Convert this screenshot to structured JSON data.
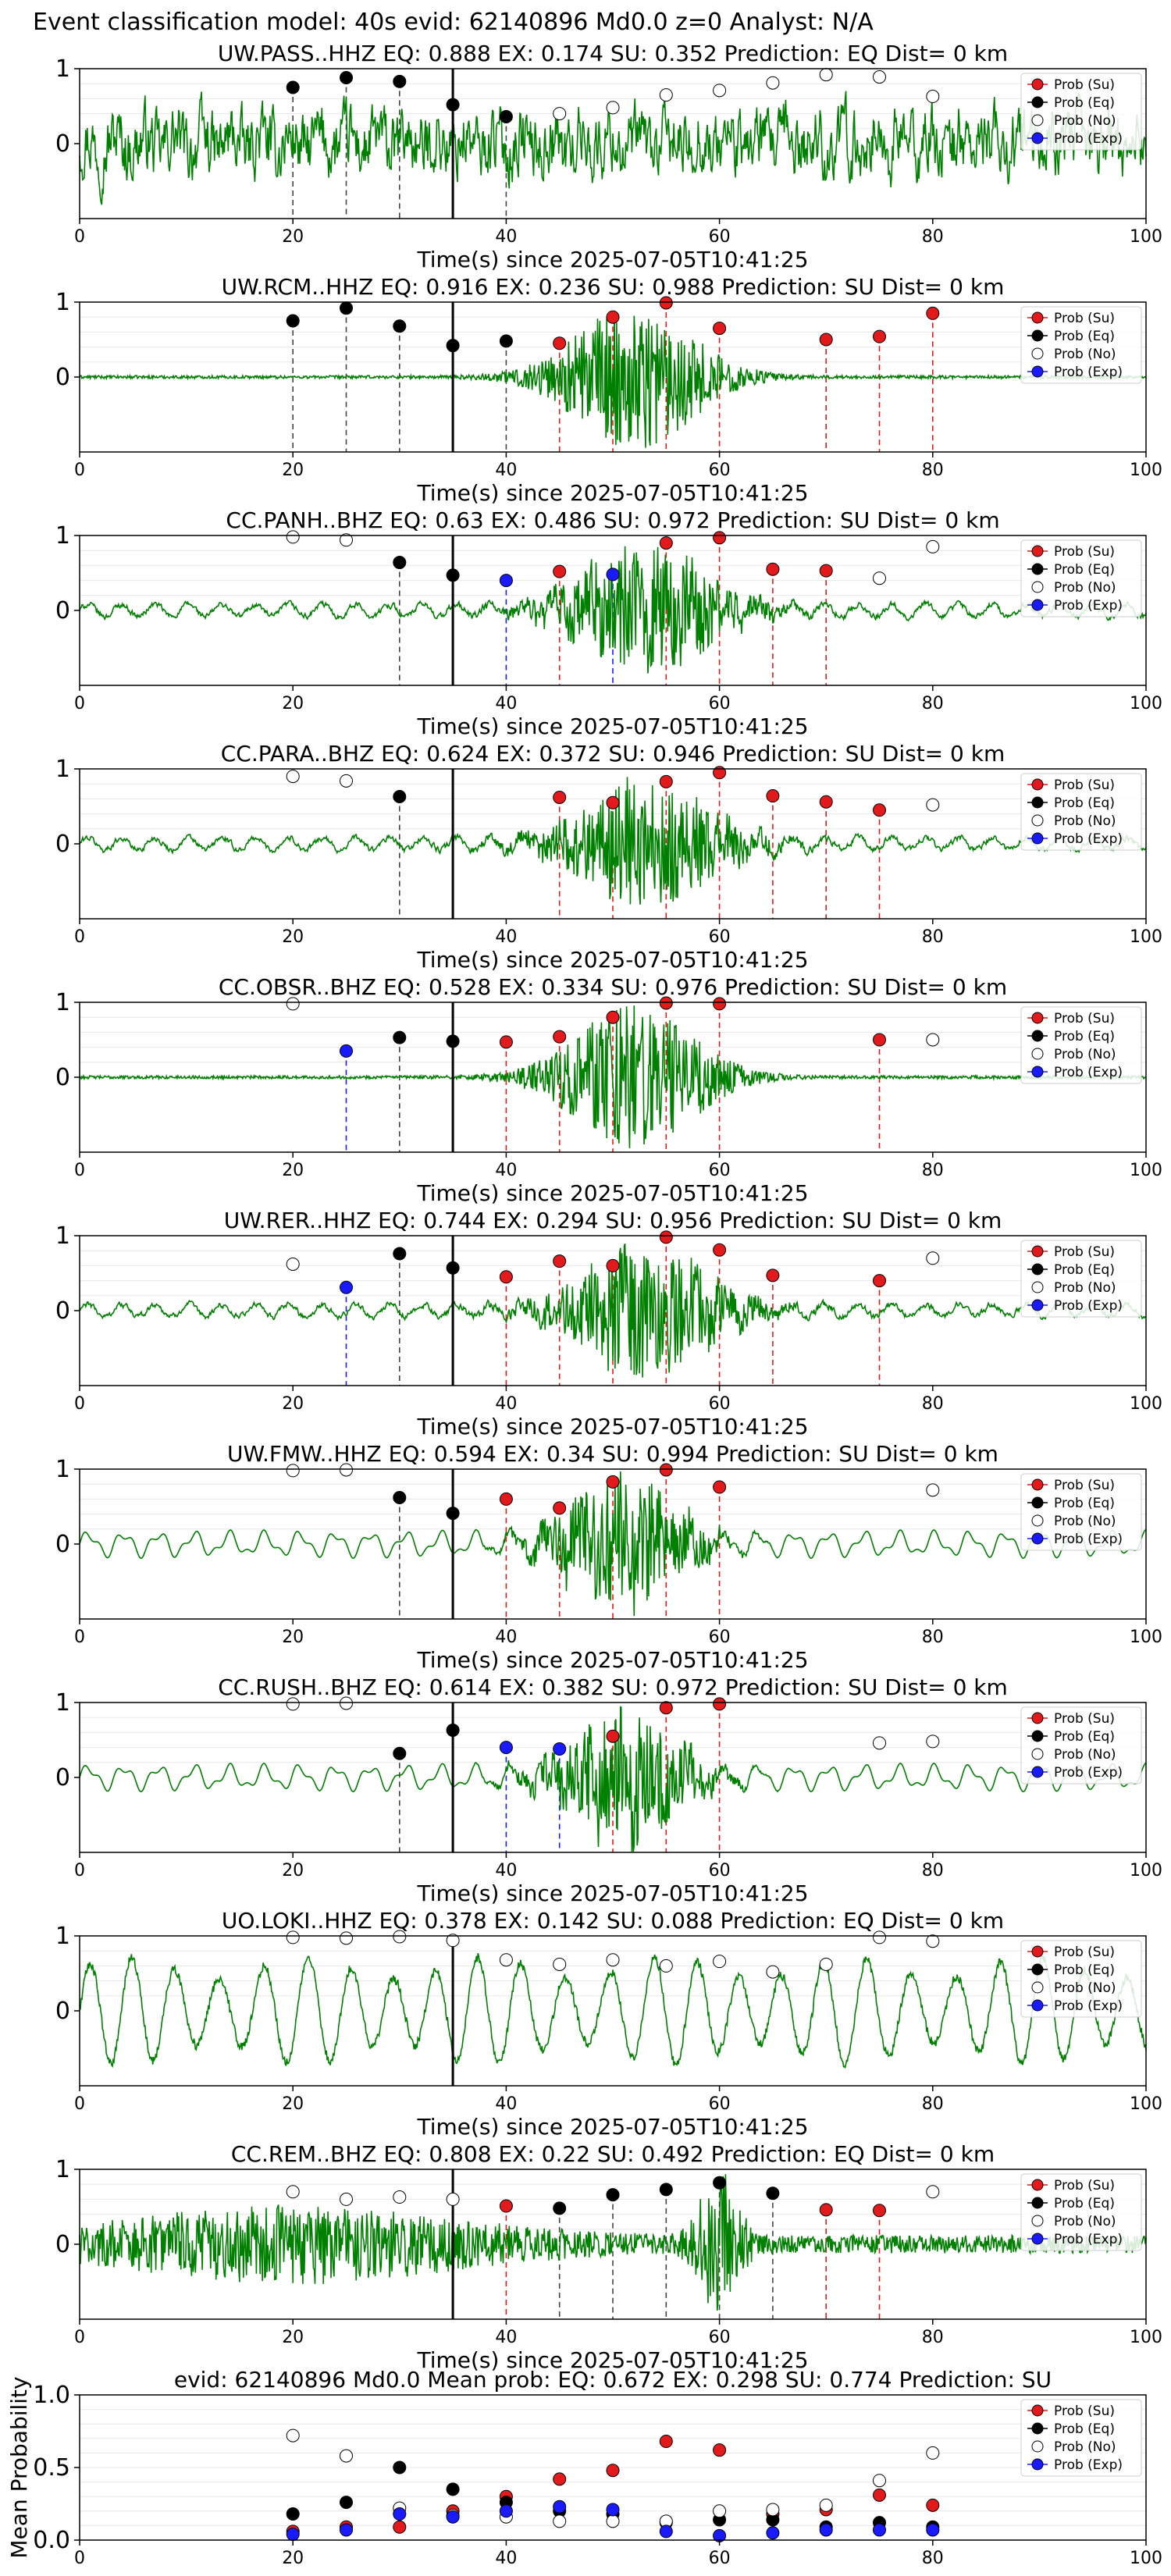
{
  "figure": {
    "suptitle": "Event classification model: 40s evid: 62140896 Md0.0 z=0 Analyst: N/A"
  },
  "legend_labels": [
    "Prob (Su)",
    "Prob (Eq)",
    "Prob (No)",
    "Prob (Exp)"
  ],
  "colors": {
    "waveform": "#008000",
    "su": "#e31a1c",
    "eq": "#000000",
    "no": "#ffffff",
    "exp": "#1a1aff"
  },
  "chart_data": [
    {
      "type": "line",
      "title": "UW.PASS..HHZ   EQ: 0.888  EX: 0.174  SU: 0.352   Prediction: EQ    Dist= 0 km",
      "xlabel": "Time(s) since 2025-07-05T10:41:25",
      "xlim": [
        0,
        100
      ],
      "ylim": [
        -1,
        1
      ],
      "xticks": [
        0,
        20,
        40,
        60,
        80,
        100
      ],
      "yticks": [
        0,
        1
      ],
      "waveform_style": "noise",
      "arrival_time": 35,
      "probabilities": [
        {
          "x": 20,
          "p": 0.75,
          "class": "eq"
        },
        {
          "x": 25,
          "p": 0.88,
          "class": "eq"
        },
        {
          "x": 30,
          "p": 0.83,
          "class": "eq"
        },
        {
          "x": 35,
          "p": 0.52,
          "class": "eq"
        },
        {
          "x": 40,
          "p": 0.36,
          "class": "eq"
        },
        {
          "x": 45,
          "p": 0.4,
          "class": "no"
        },
        {
          "x": 50,
          "p": 0.48,
          "class": "no"
        },
        {
          "x": 55,
          "p": 0.65,
          "class": "no"
        },
        {
          "x": 60,
          "p": 0.71,
          "class": "no"
        },
        {
          "x": 65,
          "p": 0.81,
          "class": "no"
        },
        {
          "x": 70,
          "p": 0.92,
          "class": "no"
        },
        {
          "x": 75,
          "p": 0.89,
          "class": "no"
        },
        {
          "x": 80,
          "p": 0.63,
          "class": "no"
        }
      ]
    },
    {
      "type": "line",
      "title": "UW.RCM..HHZ   EQ: 0.916  EX: 0.236  SU: 0.988   Prediction: SU    Dist= 0 km",
      "xlabel": "Time(s) since 2025-07-05T10:41:25",
      "xlim": [
        0,
        100
      ],
      "ylim": [
        -1,
        1
      ],
      "xticks": [
        0,
        20,
        40,
        60,
        80,
        100
      ],
      "yticks": [
        0,
        1
      ],
      "waveform_style": "burst_flat",
      "arrival_time": 35,
      "probabilities": [
        {
          "x": 20,
          "p": 0.75,
          "class": "eq"
        },
        {
          "x": 25,
          "p": 0.92,
          "class": "eq"
        },
        {
          "x": 30,
          "p": 0.68,
          "class": "eq"
        },
        {
          "x": 35,
          "p": 0.42,
          "class": "eq"
        },
        {
          "x": 40,
          "p": 0.48,
          "class": "eq"
        },
        {
          "x": 45,
          "p": 0.45,
          "class": "su"
        },
        {
          "x": 50,
          "p": 0.8,
          "class": "su"
        },
        {
          "x": 55,
          "p": 0.99,
          "class": "su"
        },
        {
          "x": 60,
          "p": 0.65,
          "class": "su"
        },
        {
          "x": 70,
          "p": 0.5,
          "class": "su"
        },
        {
          "x": 75,
          "p": 0.54,
          "class": "su"
        },
        {
          "x": 80,
          "p": 0.85,
          "class": "su"
        }
      ]
    },
    {
      "type": "line",
      "title": "CC.PANH..BHZ   EQ: 0.63  EX: 0.486  SU: 0.972   Prediction: SU    Dist= 0 km",
      "xlabel": "Time(s) since 2025-07-05T10:41:25",
      "xlim": [
        0,
        100
      ],
      "ylim": [
        -1,
        1
      ],
      "xticks": [
        0,
        20,
        40,
        60,
        80,
        100
      ],
      "yticks": [
        0,
        1
      ],
      "waveform_style": "burst_low",
      "arrival_time": 35,
      "probabilities": [
        {
          "x": 20,
          "p": 0.98,
          "class": "no"
        },
        {
          "x": 25,
          "p": 0.94,
          "class": "no"
        },
        {
          "x": 30,
          "p": 0.64,
          "class": "eq"
        },
        {
          "x": 35,
          "p": 0.47,
          "class": "eq"
        },
        {
          "x": 40,
          "p": 0.4,
          "class": "exp"
        },
        {
          "x": 45,
          "p": 0.52,
          "class": "su"
        },
        {
          "x": 50,
          "p": 0.48,
          "class": "exp"
        },
        {
          "x": 55,
          "p": 0.9,
          "class": "su"
        },
        {
          "x": 60,
          "p": 0.97,
          "class": "su"
        },
        {
          "x": 65,
          "p": 0.55,
          "class": "su"
        },
        {
          "x": 70,
          "p": 0.53,
          "class": "su"
        },
        {
          "x": 75,
          "p": 0.43,
          "class": "no"
        },
        {
          "x": 80,
          "p": 0.85,
          "class": "no"
        }
      ]
    },
    {
      "type": "line",
      "title": "CC.PARA..BHZ   EQ: 0.624  EX: 0.372  SU: 0.946   Prediction: SU    Dist= 0 km",
      "xlabel": "Time(s) since 2025-07-05T10:41:25",
      "xlim": [
        0,
        100
      ],
      "ylim": [
        -1,
        1
      ],
      "xticks": [
        0,
        20,
        40,
        60,
        80,
        100
      ],
      "yticks": [
        0,
        1
      ],
      "waveform_style": "burst_low",
      "arrival_time": 35,
      "probabilities": [
        {
          "x": 20,
          "p": 0.9,
          "class": "no"
        },
        {
          "x": 25,
          "p": 0.84,
          "class": "no"
        },
        {
          "x": 30,
          "p": 0.63,
          "class": "eq"
        },
        {
          "x": 45,
          "p": 0.62,
          "class": "su"
        },
        {
          "x": 50,
          "p": 0.55,
          "class": "su"
        },
        {
          "x": 55,
          "p": 0.83,
          "class": "su"
        },
        {
          "x": 60,
          "p": 0.95,
          "class": "su"
        },
        {
          "x": 65,
          "p": 0.64,
          "class": "su"
        },
        {
          "x": 70,
          "p": 0.56,
          "class": "su"
        },
        {
          "x": 75,
          "p": 0.45,
          "class": "su"
        },
        {
          "x": 80,
          "p": 0.52,
          "class": "no"
        }
      ]
    },
    {
      "type": "line",
      "title": "CC.OBSR..BHZ   EQ: 0.528  EX: 0.334  SU: 0.976   Prediction: SU    Dist= 0 km",
      "xlabel": "Time(s) since 2025-07-05T10:41:25",
      "xlim": [
        0,
        100
      ],
      "ylim": [
        -1,
        1
      ],
      "xticks": [
        0,
        20,
        40,
        60,
        80,
        100
      ],
      "yticks": [
        0,
        1
      ],
      "waveform_style": "burst_flat",
      "arrival_time": 35,
      "probabilities": [
        {
          "x": 20,
          "p": 0.98,
          "class": "no"
        },
        {
          "x": 25,
          "p": 0.35,
          "class": "exp"
        },
        {
          "x": 30,
          "p": 0.53,
          "class": "eq"
        },
        {
          "x": 35,
          "p": 0.48,
          "class": "eq"
        },
        {
          "x": 40,
          "p": 0.47,
          "class": "su"
        },
        {
          "x": 45,
          "p": 0.54,
          "class": "su"
        },
        {
          "x": 50,
          "p": 0.8,
          "class": "su"
        },
        {
          "x": 55,
          "p": 0.99,
          "class": "su"
        },
        {
          "x": 60,
          "p": 0.98,
          "class": "su"
        },
        {
          "x": 75,
          "p": 0.5,
          "class": "su"
        },
        {
          "x": 80,
          "p": 0.5,
          "class": "no"
        }
      ]
    },
    {
      "type": "line",
      "title": "UW.RER..HHZ   EQ: 0.744  EX: 0.294  SU: 0.956   Prediction: SU    Dist= 0 km",
      "xlabel": "Time(s) since 2025-07-05T10:41:25",
      "xlim": [
        0,
        100
      ],
      "ylim": [
        -1,
        1
      ],
      "xticks": [
        0,
        20,
        40,
        60,
        80,
        100
      ],
      "yticks": [
        0,
        1
      ],
      "waveform_style": "burst_low",
      "arrival_time": 35,
      "probabilities": [
        {
          "x": 20,
          "p": 0.62,
          "class": "no"
        },
        {
          "x": 25,
          "p": 0.31,
          "class": "exp"
        },
        {
          "x": 30,
          "p": 0.76,
          "class": "eq"
        },
        {
          "x": 35,
          "p": 0.57,
          "class": "eq"
        },
        {
          "x": 40,
          "p": 0.45,
          "class": "su"
        },
        {
          "x": 45,
          "p": 0.66,
          "class": "su"
        },
        {
          "x": 50,
          "p": 0.6,
          "class": "su"
        },
        {
          "x": 55,
          "p": 0.98,
          "class": "su"
        },
        {
          "x": 60,
          "p": 0.81,
          "class": "su"
        },
        {
          "x": 65,
          "p": 0.47,
          "class": "su"
        },
        {
          "x": 75,
          "p": 0.4,
          "class": "su"
        },
        {
          "x": 80,
          "p": 0.7,
          "class": "no"
        }
      ]
    },
    {
      "type": "line",
      "title": "UW.FMW..HHZ   EQ: 0.594  EX: 0.34  SU: 0.994   Prediction: SU    Dist= 0 km",
      "xlabel": "Time(s) since 2025-07-05T10:41:25",
      "xlim": [
        0,
        100
      ],
      "ylim": [
        -1,
        1
      ],
      "xticks": [
        0,
        20,
        40,
        60,
        80,
        100
      ],
      "yticks": [
        0,
        1
      ],
      "waveform_style": "wavy_burst",
      "arrival_time": 35,
      "probabilities": [
        {
          "x": 20,
          "p": 0.98,
          "class": "no"
        },
        {
          "x": 25,
          "p": 0.99,
          "class": "no"
        },
        {
          "x": 30,
          "p": 0.62,
          "class": "eq"
        },
        {
          "x": 35,
          "p": 0.41,
          "class": "eq"
        },
        {
          "x": 40,
          "p": 0.6,
          "class": "su"
        },
        {
          "x": 45,
          "p": 0.48,
          "class": "su"
        },
        {
          "x": 50,
          "p": 0.83,
          "class": "su"
        },
        {
          "x": 55,
          "p": 0.99,
          "class": "su"
        },
        {
          "x": 60,
          "p": 0.76,
          "class": "su"
        },
        {
          "x": 80,
          "p": 0.72,
          "class": "no"
        }
      ]
    },
    {
      "type": "line",
      "title": "CC.RUSH..BHZ   EQ: 0.614  EX: 0.382  SU: 0.972   Prediction: SU    Dist= 0 km",
      "xlabel": "Time(s) since 2025-07-05T10:41:25",
      "xlim": [
        0,
        100
      ],
      "ylim": [
        -1,
        1
      ],
      "xticks": [
        0,
        20,
        40,
        60,
        80,
        100
      ],
      "yticks": [
        0,
        1
      ],
      "waveform_style": "wavy_burst",
      "arrival_time": 35,
      "probabilities": [
        {
          "x": 20,
          "p": 0.98,
          "class": "no"
        },
        {
          "x": 25,
          "p": 0.99,
          "class": "no"
        },
        {
          "x": 30,
          "p": 0.32,
          "class": "eq"
        },
        {
          "x": 35,
          "p": 0.63,
          "class": "eq"
        },
        {
          "x": 40,
          "p": 0.4,
          "class": "exp"
        },
        {
          "x": 45,
          "p": 0.38,
          "class": "exp"
        },
        {
          "x": 50,
          "p": 0.55,
          "class": "su"
        },
        {
          "x": 55,
          "p": 0.93,
          "class": "su"
        },
        {
          "x": 60,
          "p": 0.98,
          "class": "su"
        },
        {
          "x": 75,
          "p": 0.46,
          "class": "no"
        },
        {
          "x": 80,
          "p": 0.48,
          "class": "no"
        }
      ]
    },
    {
      "type": "line",
      "title": "UO.LOKI..HHZ   EQ: 0.378  EX: 0.142  SU: 0.088   Prediction: EQ    Dist= 0 km",
      "xlabel": "Time(s) since 2025-07-05T10:41:25",
      "xlim": [
        0,
        100
      ],
      "ylim": [
        -1,
        1
      ],
      "xticks": [
        0,
        20,
        40,
        60,
        80,
        100
      ],
      "yticks": [
        0,
        1
      ],
      "waveform_style": "oscillation",
      "arrival_time": 35,
      "probabilities": [
        {
          "x": 20,
          "p": 0.98,
          "class": "no"
        },
        {
          "x": 25,
          "p": 0.97,
          "class": "no"
        },
        {
          "x": 30,
          "p": 0.99,
          "class": "no"
        },
        {
          "x": 35,
          "p": 0.94,
          "class": "no"
        },
        {
          "x": 40,
          "p": 0.68,
          "class": "no"
        },
        {
          "x": 45,
          "p": 0.62,
          "class": "no"
        },
        {
          "x": 50,
          "p": 0.68,
          "class": "no"
        },
        {
          "x": 55,
          "p": 0.6,
          "class": "no"
        },
        {
          "x": 60,
          "p": 0.66,
          "class": "no"
        },
        {
          "x": 65,
          "p": 0.52,
          "class": "no"
        },
        {
          "x": 70,
          "p": 0.62,
          "class": "no"
        },
        {
          "x": 75,
          "p": 0.98,
          "class": "no"
        },
        {
          "x": 80,
          "p": 0.93,
          "class": "no"
        }
      ]
    },
    {
      "type": "line",
      "title": "CC.REM..BHZ   EQ: 0.808  EX: 0.22  SU: 0.492   Prediction: EQ    Dist= 0 km",
      "xlabel": "Time(s) since 2025-07-05T10:41:25",
      "xlim": [
        0,
        100
      ],
      "ylim": [
        -1,
        1
      ],
      "xticks": [
        0,
        20,
        40,
        60,
        80,
        100
      ],
      "yticks": [
        0,
        1
      ],
      "waveform_style": "decay_spike",
      "arrival_time": 35,
      "probabilities": [
        {
          "x": 20,
          "p": 0.7,
          "class": "no"
        },
        {
          "x": 25,
          "p": 0.6,
          "class": "no"
        },
        {
          "x": 30,
          "p": 0.63,
          "class": "no"
        },
        {
          "x": 35,
          "p": 0.6,
          "class": "no"
        },
        {
          "x": 40,
          "p": 0.51,
          "class": "su"
        },
        {
          "x": 45,
          "p": 0.48,
          "class": "eq"
        },
        {
          "x": 50,
          "p": 0.66,
          "class": "eq"
        },
        {
          "x": 55,
          "p": 0.73,
          "class": "eq"
        },
        {
          "x": 60,
          "p": 0.82,
          "class": "eq"
        },
        {
          "x": 65,
          "p": 0.68,
          "class": "eq"
        },
        {
          "x": 70,
          "p": 0.46,
          "class": "su"
        },
        {
          "x": 75,
          "p": 0.45,
          "class": "su"
        },
        {
          "x": 80,
          "p": 0.7,
          "class": "no"
        }
      ]
    },
    {
      "type": "scatter",
      "title": "evid: 62140896   Md0.0   Mean prob:   EQ: 0.672  EX: 0.298  SU: 0.774   Prediction: SU",
      "ylabel": "Mean Probability",
      "xlim": [
        0,
        100
      ],
      "ylim": [
        0,
        1
      ],
      "xticks": [
        0,
        20,
        40,
        60,
        80,
        100
      ],
      "yticks": [
        0.0,
        0.5,
        1.0
      ],
      "x": [
        20,
        25,
        30,
        35,
        40,
        45,
        50,
        55,
        60,
        65,
        70,
        75,
        80
      ],
      "series": [
        {
          "name": "Prob (Su)",
          "class": "su",
          "values": [
            0.06,
            0.09,
            0.09,
            0.2,
            0.3,
            0.42,
            0.48,
            0.68,
            0.62,
            0.18,
            0.21,
            0.31,
            0.24
          ]
        },
        {
          "name": "Prob (Eq)",
          "class": "eq",
          "values": [
            0.18,
            0.26,
            0.5,
            0.35,
            0.26,
            0.2,
            0.18,
            0.12,
            0.14,
            0.14,
            0.09,
            0.12,
            0.09
          ]
        },
        {
          "name": "Prob (No)",
          "class": "no",
          "values": [
            0.72,
            0.58,
            0.22,
            0.17,
            0.16,
            0.13,
            0.13,
            0.13,
            0.2,
            0.21,
            0.24,
            0.41,
            0.6
          ]
        },
        {
          "name": "Prob (Exp)",
          "class": "exp",
          "values": [
            0.04,
            0.07,
            0.18,
            0.16,
            0.2,
            0.23,
            0.21,
            0.06,
            0.03,
            0.05,
            0.07,
            0.07,
            0.07
          ]
        }
      ]
    }
  ]
}
